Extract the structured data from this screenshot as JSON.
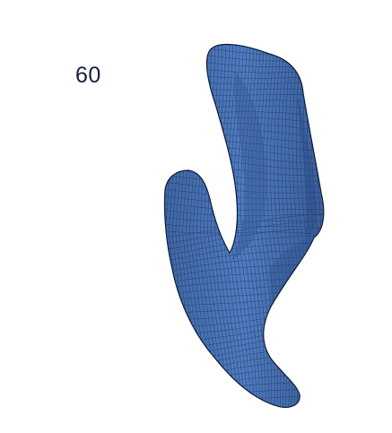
{
  "frame_label": "60",
  "surface": {
    "fill_color": "#4a76bb",
    "mesh_color": "#1e3358",
    "outline_color": "#0f1d36"
  }
}
